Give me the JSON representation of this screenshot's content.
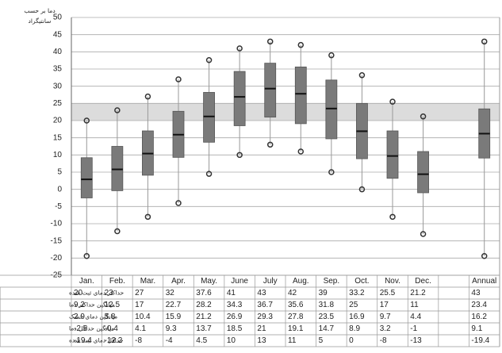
{
  "chart_data": {
    "type": "boxplot",
    "y_label": [
      "دما بر حسب",
      "سانتیگراد"
    ],
    "categories": [
      "Jan.",
      "Feb.",
      "Mar.",
      "Apr.",
      "May.",
      "June",
      "July",
      "Aug.",
      "Sep.",
      "Oct.",
      "Nov.",
      "Dec.",
      null,
      "Annual"
    ],
    "series": [
      {
        "name": "حداکثر دمای ثبت شده",
        "values": [
          20,
          23,
          27,
          32,
          37.6,
          41,
          43,
          42,
          39,
          33.2,
          25.5,
          21.2,
          null,
          43
        ]
      },
      {
        "name": "میانگین حداکثر دما",
        "values": [
          9.2,
          12.5,
          17,
          22.7,
          28.2,
          34.3,
          36.7,
          35.6,
          31.8,
          25,
          17,
          11,
          null,
          23.4
        ]
      },
      {
        "name": "میانگین دمای خشک",
        "values": [
          2.9,
          5.8,
          10.4,
          15.9,
          21.2,
          26.9,
          29.3,
          27.8,
          23.5,
          16.9,
          9.7,
          4.4,
          null,
          16.2
        ]
      },
      {
        "name": "میانگین حداقل دما",
        "values": [
          -2.5,
          -0.4,
          4.1,
          9.3,
          13.7,
          18.5,
          21,
          19.1,
          14.7,
          8.9,
          3.2,
          -1,
          null,
          9.1
        ]
      },
      {
        "name": "حداقل دمای ثبت شده",
        "values": [
          -19.4,
          -12.2,
          -8,
          -4,
          4.5,
          10,
          13,
          11,
          5,
          0,
          -8,
          -13,
          null,
          -19.4
        ]
      }
    ],
    "box_color": "#7a7a7a",
    "mean_color": "#111111",
    "band": [
      20,
      25
    ],
    "band_color": "#dcdcdc",
    "ylim": [
      -25,
      50
    ],
    "yticks": [
      -25,
      -20,
      -15,
      -10,
      -5,
      0,
      5,
      10,
      15,
      20,
      25,
      30,
      35,
      40,
      45,
      50
    ],
    "grid": true
  }
}
